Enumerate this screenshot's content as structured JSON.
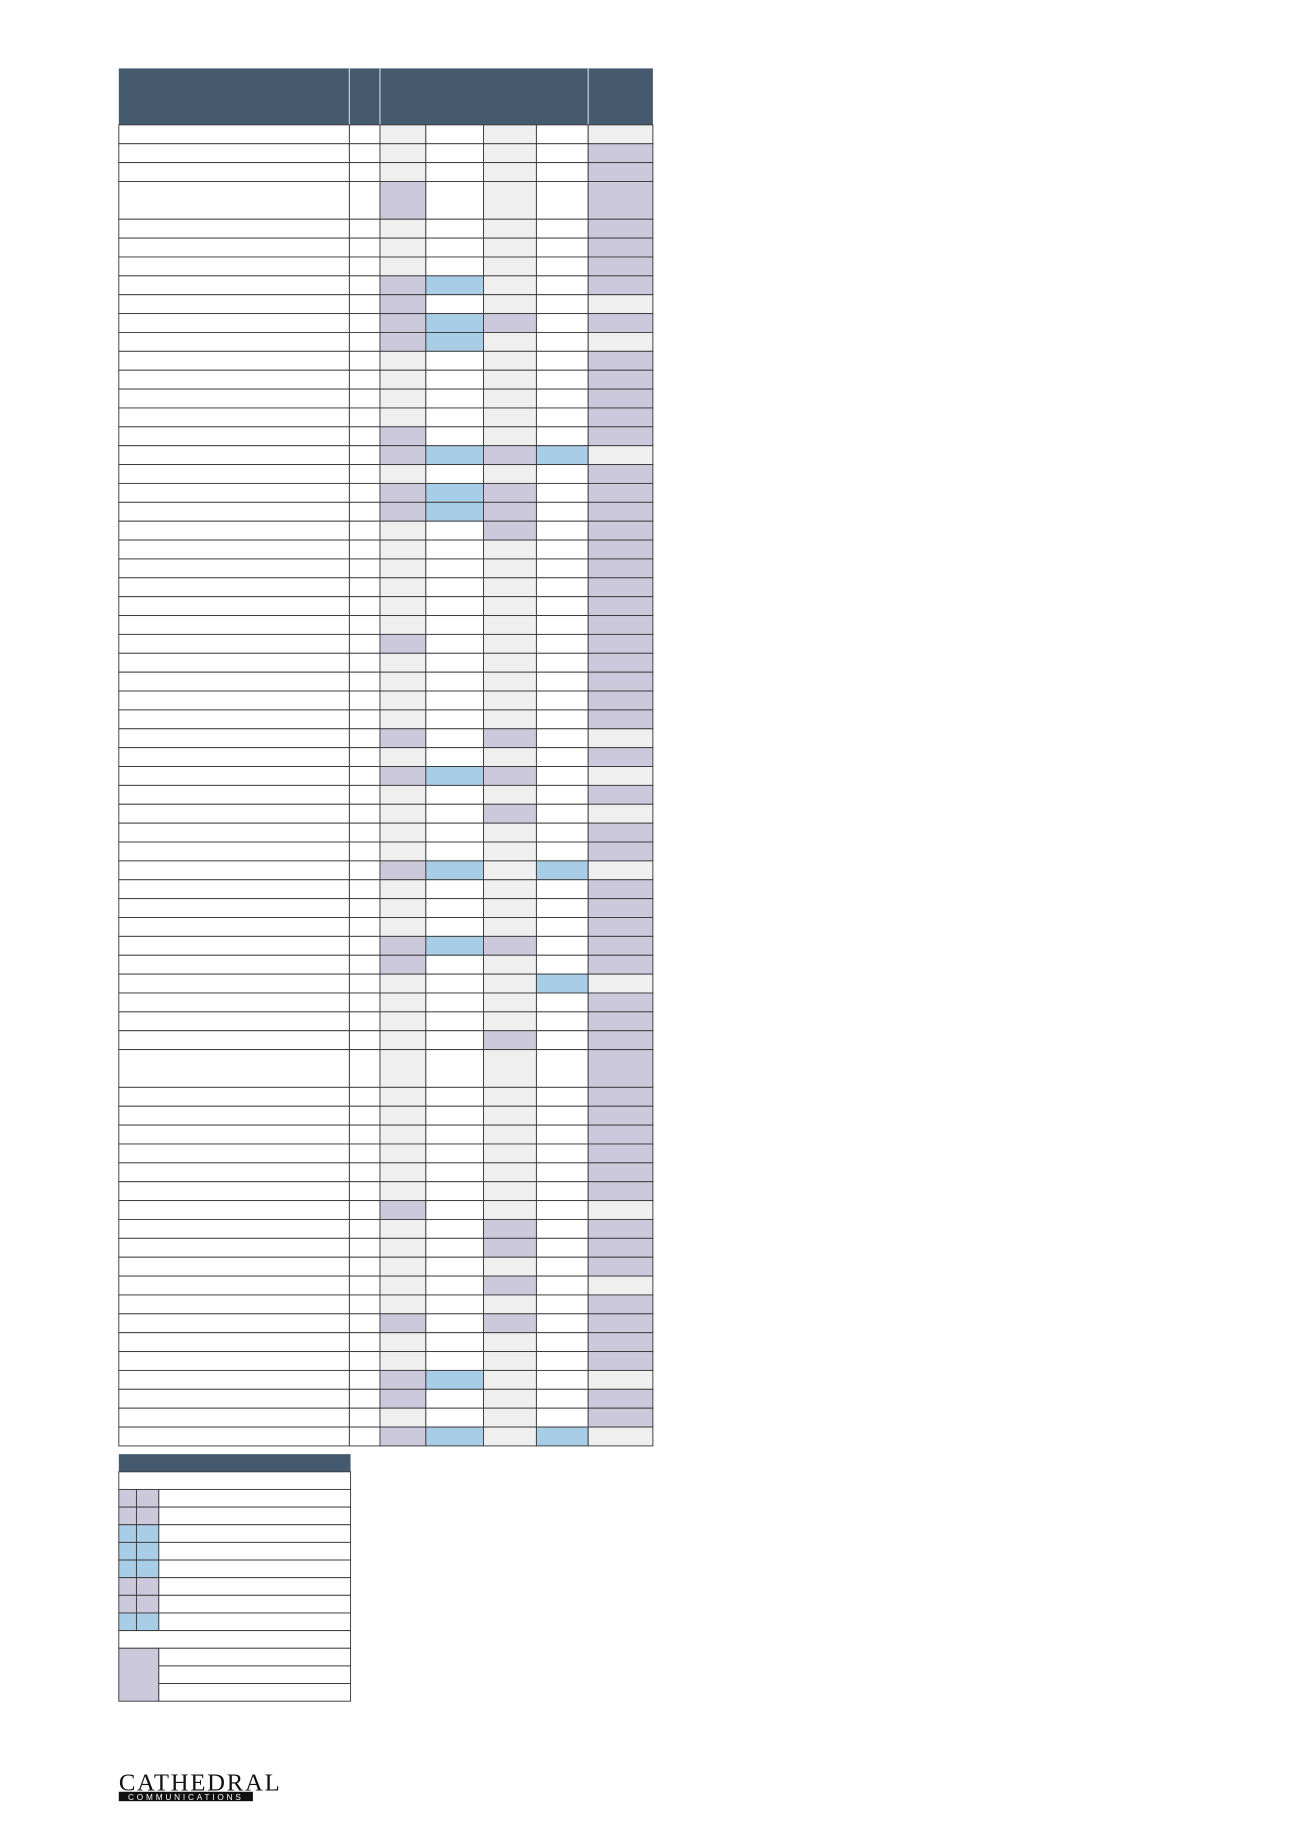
{
  "logo": {
    "name": "CATHEDRAL",
    "tagline": "COMMUNICATIONS"
  }
}
